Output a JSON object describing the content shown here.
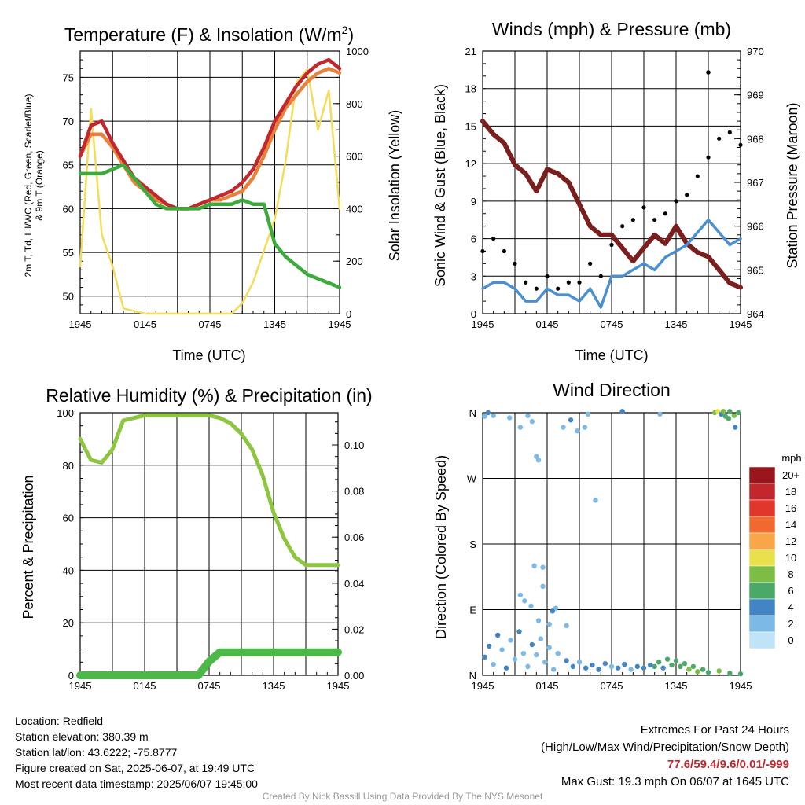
{
  "chart_data": [
    {
      "type": "line",
      "title": "Temperature (F) & Insolation (W/m²)",
      "title_main": "Temperature (F) & Insolation (W/m",
      "title_sup": "2",
      "title_end": ")",
      "xlabel": "Time (UTC)",
      "ylabel_left_line1": "2m T, Td, HI/WC (Red, Green, Scarlet/Blue)",
      "ylabel_left_line2": "& 9m T (Orange)",
      "ylabel_right": "Solar Insolation (Yellow)",
      "x_ticks": [
        "1945",
        "0145",
        "0745",
        "1345",
        "1945"
      ],
      "y_ticks_left": [
        "50",
        "55",
        "60",
        "65",
        "70",
        "75"
      ],
      "y_ticks_right": [
        "0",
        "200",
        "400",
        "600",
        "800",
        "1000"
      ],
      "ylim_left": [
        48,
        78
      ],
      "ylim_right": [
        0,
        1000
      ],
      "x_hours": [
        0,
        1,
        2,
        3,
        4,
        5,
        6,
        7,
        8,
        9,
        10,
        11,
        12,
        13,
        14,
        15,
        16,
        17,
        18,
        19,
        20,
        21,
        22,
        23,
        24
      ],
      "series": [
        {
          "color": "#e8823a",
          "axis": "left",
          "values": [
            66,
            68.5,
            68.5,
            67,
            65,
            63,
            62,
            61,
            60.5,
            60,
            60,
            60.5,
            61,
            61,
            61.5,
            62,
            63.5,
            66,
            69,
            71.5,
            73,
            74.5,
            75.5,
            76,
            75.5
          ]
        },
        {
          "color": "#c1272d",
          "axis": "left",
          "values": [
            66,
            69.5,
            70,
            67.5,
            65.5,
            63.5,
            62.5,
            61.5,
            60.5,
            60,
            60,
            60.5,
            61,
            61.5,
            62,
            63,
            64.5,
            67,
            70,
            72,
            74,
            75.5,
            76.5,
            77,
            76
          ]
        },
        {
          "color": "#3cab3c",
          "axis": "left",
          "values": [
            64,
            64,
            64,
            64.5,
            65,
            63.5,
            62,
            60.5,
            60,
            60,
            60,
            60,
            60.5,
            60.5,
            60.5,
            61,
            60.5,
            60.5,
            56,
            54.5,
            53.5,
            52.5,
            52,
            51.5,
            51
          ]
        },
        {
          "color": "#f4dc5a",
          "axis": "right",
          "values": [
            180,
            780,
            300,
            180,
            20,
            10,
            0,
            0,
            0,
            0,
            0,
            0,
            0,
            0,
            0,
            40,
            120,
            240,
            360,
            580,
            880,
            930,
            700,
            850,
            400
          ]
        }
      ]
    },
    {
      "type": "line",
      "title": "Winds (mph) & Pressure (mb)",
      "xlabel": "Time (UTC)",
      "ylabel_left": "Sonic Wind & Gust (Blue, Black)",
      "ylabel_right": "Station Pressure (Maroon)",
      "x_ticks": [
        "1945",
        "0145",
        "0745",
        "1345",
        "1945"
      ],
      "y_ticks_left": [
        "0",
        "3",
        "6",
        "9",
        "12",
        "15",
        "18",
        "21"
      ],
      "y_ticks_right": [
        "964",
        "965",
        "966",
        "967",
        "968",
        "969",
        "970"
      ],
      "ylim_left": [
        0,
        21
      ],
      "ylim_right": [
        964,
        970
      ],
      "x_hours": [
        0,
        1,
        2,
        3,
        4,
        5,
        6,
        7,
        8,
        9,
        10,
        11,
        12,
        13,
        14,
        15,
        16,
        17,
        18,
        19,
        20,
        21,
        22,
        23,
        24
      ],
      "series": [
        {
          "color": "#7a1e1e",
          "axis": "right",
          "values": [
            968.4,
            968.1,
            967.9,
            967.4,
            967.2,
            966.8,
            967.3,
            967.2,
            967.0,
            966.5,
            966.0,
            965.8,
            965.8,
            965.5,
            965.2,
            965.5,
            965.8,
            965.6,
            966.0,
            965.6,
            965.4,
            965.3,
            965.0,
            964.7,
            964.6
          ]
        },
        {
          "color": "#4a90d0",
          "axis": "left",
          "values": [
            2.0,
            2.5,
            2.5,
            2.0,
            1.0,
            1.0,
            2.0,
            1.5,
            1.5,
            1.0,
            2.0,
            0.5,
            3.0,
            3.0,
            3.5,
            4.0,
            3.5,
            4.5,
            5.0,
            5.5,
            6.5,
            7.5,
            6.5,
            5.5,
            6.0
          ]
        },
        {
          "color": "#000000",
          "axis": "left",
          "mark": "points",
          "values": [
            5.0,
            6.0,
            5.0,
            4.0,
            2.5,
            2.0,
            3.0,
            2.0,
            2.5,
            2.5,
            4.0,
            3.0,
            5.5,
            7.0,
            7.5,
            8.5,
            7.5,
            8.0,
            9.0,
            9.5,
            11.0,
            12.5,
            14.0,
            14.5,
            13.5
          ]
        }
      ],
      "max_gust_point": {
        "hour": 21,
        "value": 19.3
      }
    },
    {
      "type": "line",
      "title": "Relative Humidity (%) & Precipitation (in)",
      "ylabel_left": "Percent & Precipitation",
      "x_ticks": [
        "1945",
        "0145",
        "0745",
        "1345",
        "1945"
      ],
      "y_ticks_left": [
        "0",
        "20",
        "40",
        "60",
        "80",
        "100"
      ],
      "y_ticks_right": [
        "0.00",
        "0.02",
        "0.04",
        "0.06",
        "0.08",
        "0.10"
      ],
      "ylim_left": [
        0,
        100
      ],
      "ylim_right": [
        0,
        0.114
      ],
      "x_hours": [
        0,
        1,
        2,
        3,
        4,
        5,
        6,
        7,
        8,
        9,
        10,
        11,
        12,
        13,
        14,
        15,
        16,
        17,
        18,
        19,
        20,
        21,
        22,
        23,
        24
      ],
      "series": [
        {
          "color": "#8cc63f",
          "axis": "left",
          "values": [
            90,
            82,
            81,
            86,
            97,
            98,
            99,
            99,
            99,
            99,
            99,
            99,
            99,
            98,
            96,
            92,
            86,
            76,
            62,
            52,
            45,
            42,
            42,
            42,
            42
          ]
        },
        {
          "color": "#4cb848",
          "axis": "right",
          "values": [
            0,
            0,
            0,
            0,
            0,
            0,
            0,
            0,
            0,
            0,
            0,
            0,
            0.006,
            0.01,
            0.01,
            0.01,
            0.01,
            0.01,
            0.01,
            0.01,
            0.01,
            0.01,
            0.01,
            0.01,
            0.01
          ]
        }
      ]
    },
    {
      "type": "scatter",
      "title": "Wind Direction",
      "ylabel": "Direction (Colored By Speed)",
      "x_ticks": [
        "1945",
        "0145",
        "0745",
        "1345",
        "1945"
      ],
      "y_ticks": [
        "N",
        "E",
        "S",
        "W",
        "N"
      ],
      "ylim": [
        0,
        360
      ],
      "legend_title": "mph",
      "legend_labels": [
        "20+",
        "18",
        "16",
        "14",
        "12",
        "10",
        "8",
        "6",
        "4",
        "2",
        "0"
      ],
      "legend_colors": [
        "#99161c",
        "#c1272d",
        "#e0362b",
        "#f06a30",
        "#f9a64a",
        "#e9e04c",
        "#7cbd45",
        "#4aa869",
        "#4385c4",
        "#7db9e6",
        "#bfe3f7"
      ],
      "legend_placement": "right",
      "points": [
        [
          0.2,
          355,
          2
        ],
        [
          0.5,
          360,
          4
        ],
        [
          1.0,
          356,
          2
        ],
        [
          2.5,
          353,
          2
        ],
        [
          3.5,
          340,
          2
        ],
        [
          4.2,
          356,
          2
        ],
        [
          4.6,
          348,
          2
        ],
        [
          5.0,
          300,
          2
        ],
        [
          5.2,
          295,
          2
        ],
        [
          7.5,
          340,
          2
        ],
        [
          8.2,
          350,
          4
        ],
        [
          8.8,
          335,
          2
        ],
        [
          9.5,
          340,
          2
        ],
        [
          9.8,
          358,
          2
        ],
        [
          10.5,
          240,
          2
        ],
        [
          13.0,
          362,
          4
        ],
        [
          16.5,
          358,
          2
        ],
        [
          21.6,
          360,
          8
        ],
        [
          21.9,
          362,
          10
        ],
        [
          22.2,
          358,
          4
        ],
        [
          22.6,
          355,
          6
        ],
        [
          23.0,
          362,
          6
        ],
        [
          23.4,
          356,
          8
        ],
        [
          23.8,
          360,
          6
        ],
        [
          22.9,
          352,
          6
        ],
        [
          23.5,
          340,
          4
        ],
        [
          22.4,
          362,
          8
        ],
        [
          3.5,
          110,
          2
        ],
        [
          4.8,
          150,
          2
        ],
        [
          5.6,
          148,
          2
        ],
        [
          5.6,
          122,
          2
        ],
        [
          3.9,
          102,
          2
        ],
        [
          4.5,
          95,
          2
        ],
        [
          5.2,
          75,
          2
        ],
        [
          6.2,
          70,
          2
        ],
        [
          6.8,
          92,
          2
        ],
        [
          6.5,
          88,
          4
        ],
        [
          7.8,
          68,
          2
        ],
        [
          0.2,
          25,
          4
        ],
        [
          0.6,
          40,
          4
        ],
        [
          1.0,
          15,
          2
        ],
        [
          1.4,
          55,
          4
        ],
        [
          1.8,
          35,
          2
        ],
        [
          2.2,
          10,
          4
        ],
        [
          2.6,
          48,
          2
        ],
        [
          3.0,
          22,
          2
        ],
        [
          3.4,
          60,
          4
        ],
        [
          3.8,
          30,
          2
        ],
        [
          4.2,
          12,
          2
        ],
        [
          4.6,
          42,
          4
        ],
        [
          5.0,
          28,
          2
        ],
        [
          5.4,
          50,
          2
        ],
        [
          5.8,
          18,
          2
        ],
        [
          6.2,
          38,
          2
        ],
        [
          6.6,
          8,
          2
        ],
        [
          7.0,
          30,
          2
        ],
        [
          7.8,
          20,
          4
        ],
        [
          8.4,
          12,
          4
        ],
        [
          9.0,
          18,
          2
        ],
        [
          9.6,
          10,
          4
        ],
        [
          10.2,
          14,
          4
        ],
        [
          10.8,
          8,
          4
        ],
        [
          11.4,
          16,
          4
        ],
        [
          12.0,
          12,
          2
        ],
        [
          12.6,
          10,
          4
        ],
        [
          13.2,
          15,
          4
        ],
        [
          13.8,
          8,
          2
        ],
        [
          14.4,
          12,
          4
        ],
        [
          15.0,
          10,
          4
        ],
        [
          15.6,
          14,
          4
        ],
        [
          16.0,
          12,
          6
        ],
        [
          16.4,
          18,
          6
        ],
        [
          16.8,
          10,
          4
        ],
        [
          17.2,
          22,
          6
        ],
        [
          17.6,
          14,
          6
        ],
        [
          18.0,
          20,
          6
        ],
        [
          18.4,
          12,
          6
        ],
        [
          18.8,
          16,
          6
        ],
        [
          19.2,
          8,
          8
        ],
        [
          19.6,
          12,
          6
        ],
        [
          20.0,
          5,
          8
        ],
        [
          20.5,
          8,
          6
        ],
        [
          21.0,
          4,
          6
        ],
        [
          22.0,
          6,
          8
        ],
        [
          23.0,
          3,
          6
        ],
        [
          24.0,
          2,
          6
        ]
      ]
    }
  ],
  "station_info": {
    "location": "Location: Redfield",
    "elevation": "Station elevation: 380.39 m",
    "latlon": "Station lat/lon: 43.6222; -75.8777",
    "created": "Figure created on Sat, 2025-06-07, at 19:49 UTC",
    "recent": "Most recent data timestamp: 2025/06/07 19:45:00"
  },
  "extremes": {
    "title": "Extremes For Past 24 Hours",
    "subtitle": "(High/Low/Max Wind/Precipitation/Snow Depth)",
    "values": "77.6/59.4/9.6/0.01/-999",
    "max_gust": "Max Gust: 19.3 mph On 06/07 at 1645 UTC"
  },
  "credit": "Created By Nick Bassill Using Data Provided By The NYS Mesonet"
}
